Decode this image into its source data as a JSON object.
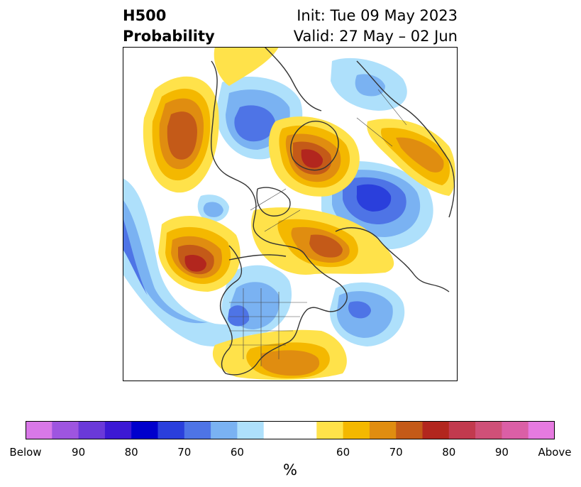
{
  "title": {
    "line1": "H500",
    "line2": "Probability"
  },
  "subtitle": {
    "line1": "Init: Tue 09 May 2023",
    "line2": "Valid: 27 May – 02 Jun"
  },
  "colorbar": {
    "unit": "%",
    "colors": [
      "#d978e8",
      "#9e55e0",
      "#6a39d9",
      "#3c19d4",
      "#0000cc",
      "#2a3fdc",
      "#4e74e6",
      "#7ab2f2",
      "#aee0fb",
      "#ffffff",
      "#ffffff",
      "#ffe24a",
      "#f4b800",
      "#e08d10",
      "#c45a18",
      "#b2261e",
      "#c23a4e",
      "#cf5078",
      "#db5fa6",
      "#e67ae0"
    ],
    "ticks": [
      "Below",
      "90",
      "80",
      "70",
      "60",
      "60",
      "70",
      "80",
      "90",
      "Above"
    ],
    "tick_fracs": [
      0,
      0.1,
      0.2,
      0.3,
      0.4,
      0.6,
      0.7,
      0.8,
      0.9,
      1.0
    ]
  },
  "anomalies": [
    {
      "label": "below",
      "color": "#7ab2f2"
    },
    {
      "label": "above",
      "color": "#e08d10"
    }
  ]
}
